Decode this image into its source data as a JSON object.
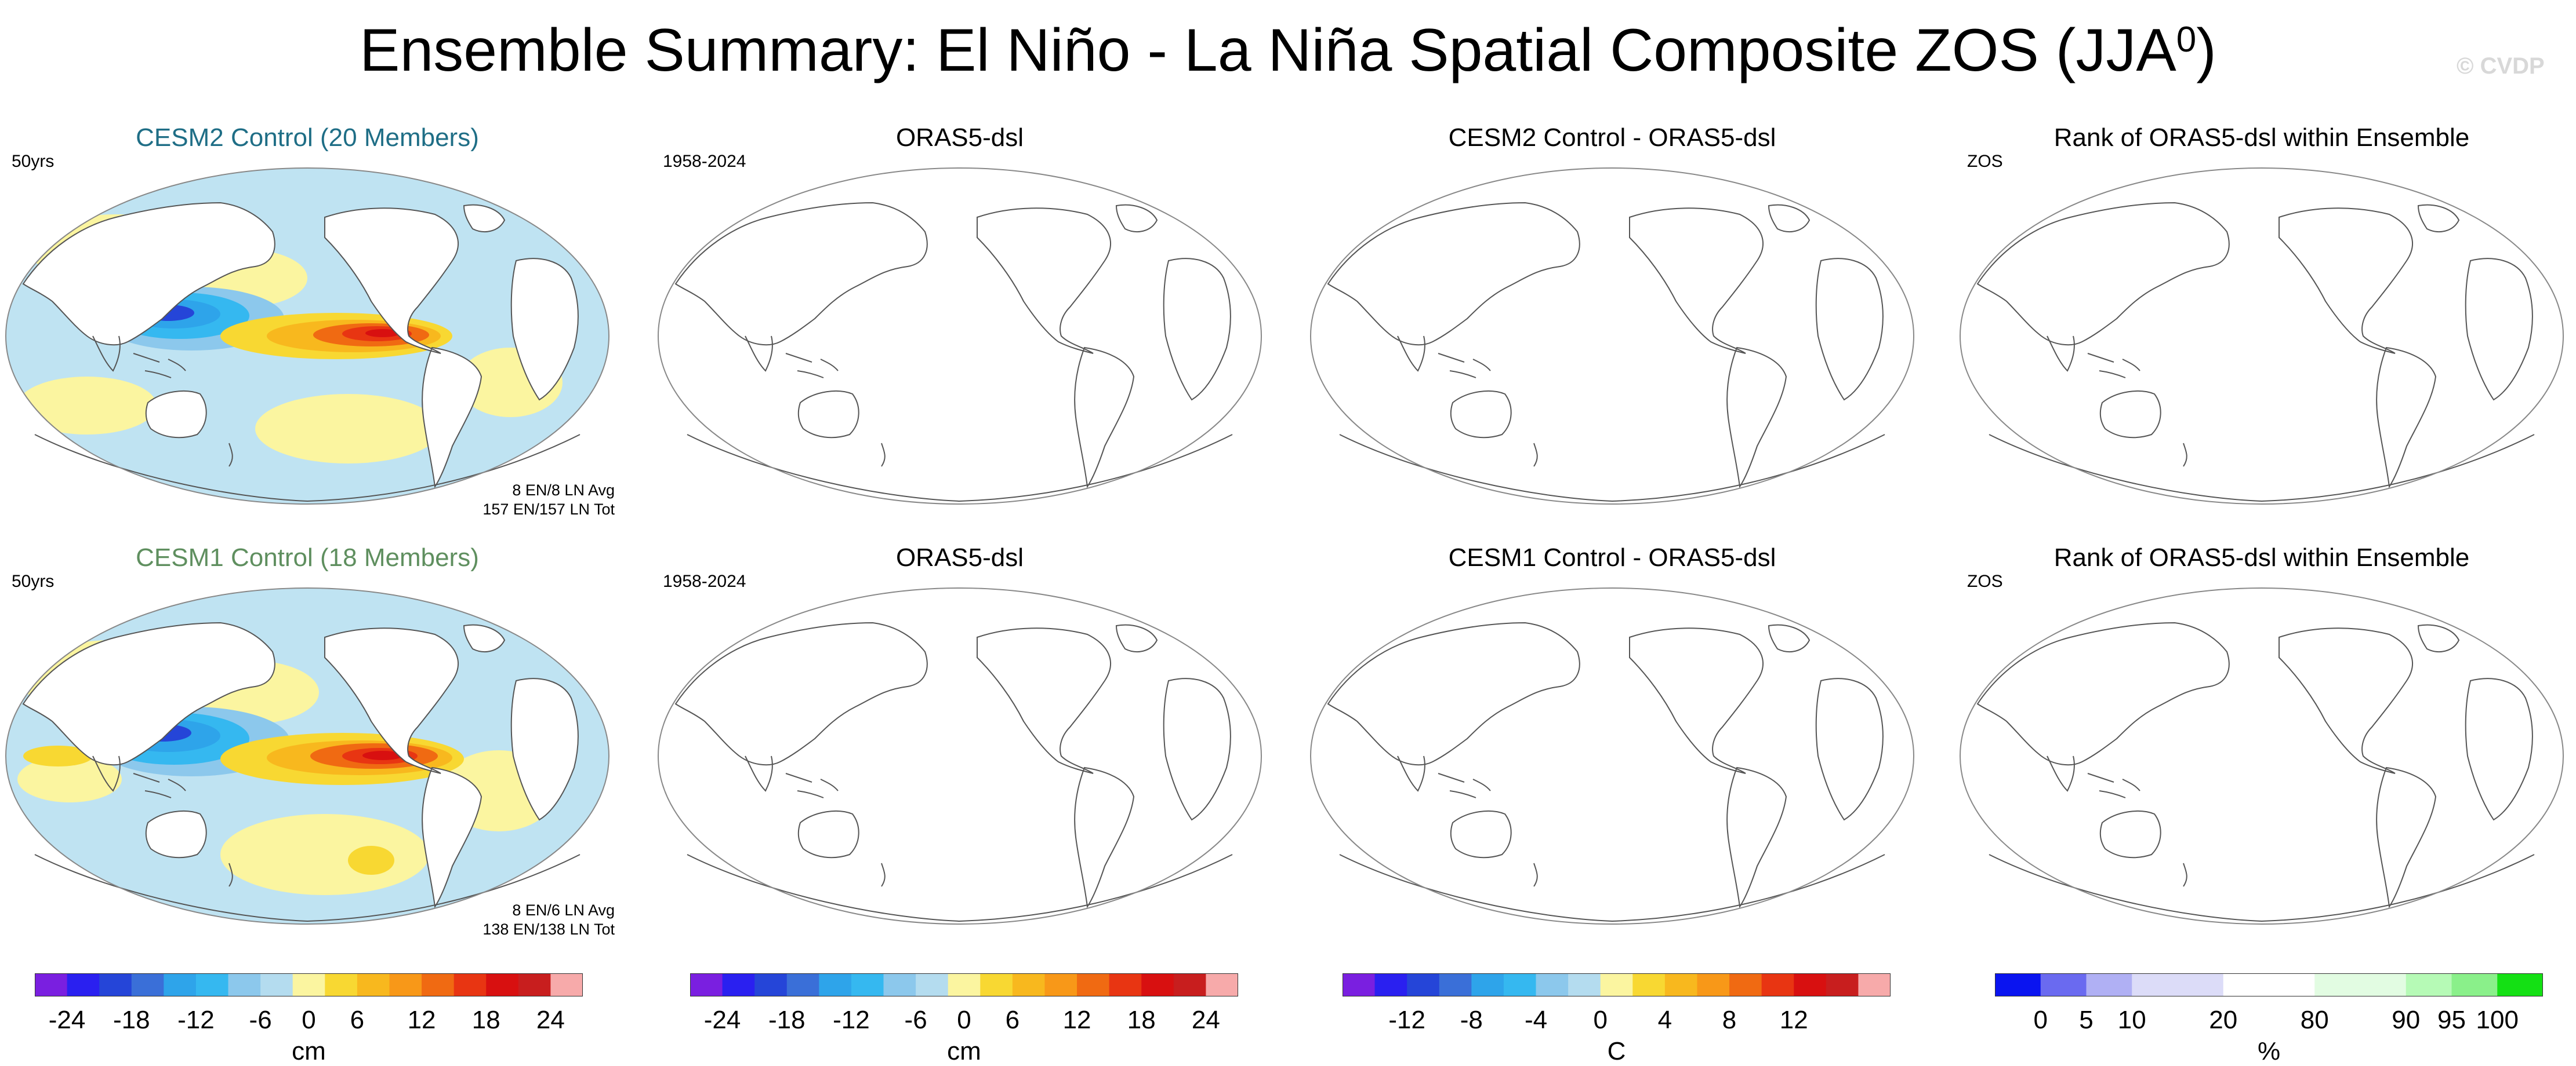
{
  "title": "Ensemble Summary: El Niño - La Niña Spatial Composite ZOS (JJA",
  "title_superscript": "0",
  "title_closing": ")",
  "watermark": "© CVDP",
  "colors": {
    "cesm2_title": "#1f6e86",
    "cesm1_title": "#5f8f5f",
    "land": "#ffffff",
    "ocean_base": "#bfe3f2",
    "coast": "#555555"
  },
  "panels": {
    "cesm2_control": {
      "title": "CESM2 Control (20 Members)",
      "corner": "50yrs",
      "stats_line1": "8 EN/8 LN Avg",
      "stats_line2": "157 EN/157 LN Tot"
    },
    "orsas5_top": {
      "title": "ORAS5-dsl",
      "corner": "1958-2024"
    },
    "diff_cesm2": {
      "title": "CESM2 Control - ORAS5-dsl",
      "corner": ""
    },
    "rank_top": {
      "title": "Rank of ORAS5-dsl within Ensemble",
      "corner": "ZOS"
    },
    "cesm1_control": {
      "title": "CESM1 Control (18 Members)",
      "corner": "50yrs",
      "stats_line1": "8 EN/6 LN Avg",
      "stats_line2": "138 EN/138 LN Tot"
    },
    "orsas5_bottom": {
      "title": "ORAS5-dsl",
      "corner": "1958-2024"
    },
    "diff_cesm1": {
      "title": "CESM1 Control - ORAS5-dsl",
      "corner": ""
    },
    "rank_bottom": {
      "title": "Rank of ORAS5-dsl within Ensemble",
      "corner": "ZOS"
    }
  },
  "colorbars": [
    {
      "id": "cb1",
      "unit": "cm",
      "colors": [
        "#7a1fe0",
        "#2a20f0",
        "#2545d8",
        "#3a6fd8",
        "#2ea4ea",
        "#35b8f0",
        "#8cc8ec",
        "#b4dcef",
        "#fbf5a0",
        "#f8d832",
        "#f8b81e",
        "#f89818",
        "#f06a12",
        "#e83512",
        "#d81010",
        "#c81e1e",
        "#f7aaaa"
      ],
      "ticks": [
        "-24",
        "-18",
        "-12",
        "-6",
        "0",
        "6",
        "12",
        "18",
        "24"
      ]
    },
    {
      "id": "cb2",
      "unit": "cm",
      "colors": [
        "#7a1fe0",
        "#2a20f0",
        "#2545d8",
        "#3a6fd8",
        "#2ea4ea",
        "#35b8f0",
        "#8cc8ec",
        "#b4dcef",
        "#fbf5a0",
        "#f8d832",
        "#f8b81e",
        "#f89818",
        "#f06a12",
        "#e83512",
        "#d81010",
        "#c81e1e",
        "#f7aaaa"
      ],
      "ticks": [
        "-24",
        "-18",
        "-12",
        "-6",
        "0",
        "6",
        "12",
        "18",
        "24"
      ]
    },
    {
      "id": "cb3",
      "unit": "C",
      "colors": [
        "#7a1fe0",
        "#2a20f0",
        "#2545d8",
        "#3a6fd8",
        "#2ea4ea",
        "#35b8f0",
        "#8cc8ec",
        "#b4dcef",
        "#fbf5a0",
        "#f8d832",
        "#f8b81e",
        "#f89818",
        "#f06a12",
        "#e83512",
        "#d81010",
        "#c81e1e",
        "#f7aaaa"
      ],
      "ticks": [
        "-12",
        "-8",
        "-4",
        "0",
        "4",
        "8",
        "12"
      ]
    },
    {
      "id": "cb4",
      "unit": "%",
      "colors": [
        "#0a14f0",
        "#6a6af0",
        "#b0b0f4",
        "#dcdcf8",
        "#dcdcf8",
        "#ffffff",
        "#ffffff",
        "#e2fce2",
        "#e2fce2",
        "#b6fab6",
        "#8af08a",
        "#14e014"
      ],
      "ticks": [
        "0",
        "5",
        "10",
        "20",
        "80",
        "90",
        "95",
        "100"
      ]
    }
  ]
}
